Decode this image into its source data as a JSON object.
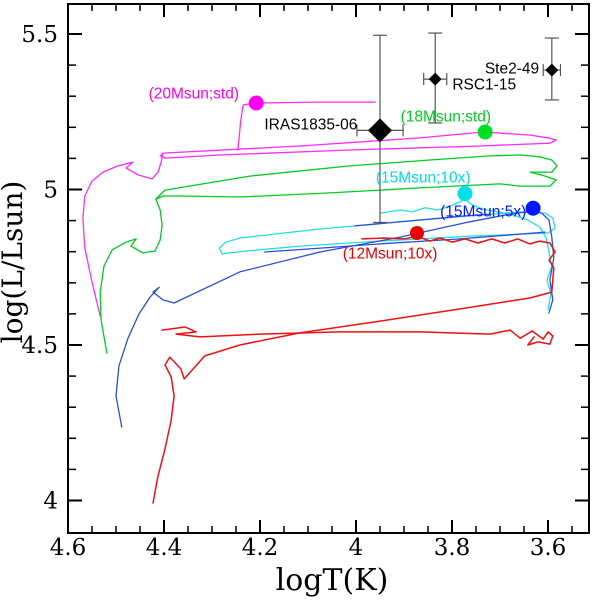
{
  "chart_data": {
    "type": "line",
    "title": "",
    "xlabel": "logT(K)",
    "ylabel": "log(L/Lsun)",
    "xlim": [
      4.6,
      3.515
    ],
    "x_reversed": true,
    "ylim": [
      3.897,
      5.597
    ],
    "grid": false,
    "x_ticks": {
      "values": [
        4.6,
        4.4,
        4.2,
        4.0,
        3.8,
        3.6
      ],
      "labels": [
        "4.6",
        "4.4",
        "4.2",
        "4",
        "3.8",
        "3.6"
      ],
      "minor_step": 0.05
    },
    "y_ticks": {
      "values": [
        5.5,
        5.0,
        4.5,
        4.0
      ],
      "labels": [
        "5.5",
        "5",
        "4.5",
        "4"
      ],
      "minor_step": 0.1
    },
    "tracks": [
      {
        "name": "20Msun-std",
        "color": "#ff2bff",
        "width": 1.3,
        "paths": [
          [
            [
              4.533,
              4.593
            ],
            [
              4.55,
              4.703
            ],
            [
              4.565,
              4.812
            ],
            [
              4.569,
              4.908
            ],
            [
              4.565,
              4.979
            ],
            [
              4.55,
              5.027
            ],
            [
              4.527,
              5.056
            ],
            [
              4.496,
              5.076
            ],
            [
              4.465,
              5.088
            ],
            [
              4.479,
              5.069
            ],
            [
              4.454,
              5.047
            ],
            [
              4.425,
              5.034
            ],
            [
              4.412,
              5.056
            ],
            [
              4.406,
              5.088
            ],
            [
              4.402,
              5.117
            ],
            [
              4.117,
              5.14
            ],
            [
              3.867,
              5.166
            ],
            [
              3.735,
              5.185
            ],
            [
              3.637,
              5.175
            ],
            [
              3.596,
              5.165
            ],
            [
              3.583,
              5.159
            ],
            [
              3.596,
              5.149
            ],
            [
              3.742,
              5.14
            ],
            [
              4.012,
              5.127
            ],
            [
              4.283,
              5.111
            ],
            [
              4.398,
              5.101
            ],
            [
              4.408,
              5.108
            ],
            [
              4.402,
              5.117
            ]
          ],
          [
            [
              4.246,
              5.127
            ],
            [
              4.24,
              5.223
            ],
            [
              4.235,
              5.272
            ],
            [
              4.208,
              5.278
            ],
            [
              4.075,
              5.281
            ],
            [
              3.96,
              5.281
            ]
          ]
        ]
      },
      {
        "name": "18Msun-std",
        "color": "#00cc22",
        "width": 1.3,
        "paths": [
          [
            [
              4.519,
              4.474
            ],
            [
              4.531,
              4.58
            ],
            [
              4.533,
              4.67
            ],
            [
              4.525,
              4.754
            ],
            [
              4.508,
              4.806
            ],
            [
              4.479,
              4.831
            ],
            [
              4.458,
              4.841
            ],
            [
              4.469,
              4.818
            ],
            [
              4.444,
              4.796
            ],
            [
              4.419,
              4.802
            ],
            [
              4.408,
              4.838
            ],
            [
              4.404,
              4.886
            ],
            [
              4.408,
              4.934
            ],
            [
              4.417,
              4.969
            ],
            [
              4.398,
              4.998
            ],
            [
              4.221,
              5.043
            ],
            [
              4.013,
              5.076
            ],
            [
              3.846,
              5.095
            ],
            [
              3.721,
              5.108
            ],
            [
              3.658,
              5.111
            ],
            [
              3.617,
              5.105
            ],
            [
              3.592,
              5.095
            ],
            [
              3.581,
              5.076
            ],
            [
              3.592,
              5.056
            ],
            [
              3.637,
              5.056
            ],
            [
              3.606,
              5.043
            ],
            [
              3.583,
              5.031
            ],
            [
              3.596,
              5.011
            ],
            [
              3.658,
              5.011
            ],
            [
              3.7,
              5.018
            ],
            [
              3.867,
              5.005
            ],
            [
              4.054,
              4.989
            ],
            [
              4.242,
              4.976
            ],
            [
              4.367,
              4.979
            ],
            [
              4.402,
              4.979
            ],
            [
              4.417,
              4.969
            ]
          ]
        ]
      },
      {
        "name": "15Msun-10x",
        "color": "#27dede",
        "width": 1.3,
        "paths": [
          [
            [
              4.279,
              4.793
            ],
            [
              4.285,
              4.812
            ],
            [
              4.271,
              4.831
            ],
            [
              4.242,
              4.844
            ],
            [
              4.075,
              4.873
            ],
            [
              3.908,
              4.896
            ],
            [
              3.763,
              4.915
            ],
            [
              3.658,
              4.928
            ],
            [
              3.606,
              4.924
            ],
            [
              3.59,
              4.908
            ],
            [
              3.585,
              4.876
            ],
            [
              3.6,
              4.86
            ],
            [
              3.763,
              4.85
            ],
            [
              3.95,
              4.834
            ],
            [
              4.117,
              4.818
            ],
            [
              4.231,
              4.802
            ],
            [
              4.279,
              4.793
            ]
          ],
          [
            [
              3.95,
              4.924
            ],
            [
              3.908,
              4.934
            ],
            [
              3.883,
              4.928
            ],
            [
              3.856,
              4.941
            ],
            [
              3.829,
              4.934
            ],
            [
              3.804,
              4.947
            ],
            [
              3.783,
              4.96
            ],
            [
              3.773,
              4.97
            ],
            [
              3.758,
              4.95
            ],
            [
              3.735,
              4.937
            ],
            [
              3.704,
              4.928
            ],
            [
              3.673,
              4.918
            ],
            [
              3.642,
              4.902
            ],
            [
              3.617,
              4.879
            ],
            [
              3.604,
              4.844
            ],
            [
              3.598,
              4.799
            ],
            [
              3.592,
              4.754
            ],
            [
              3.602,
              4.709
            ],
            [
              3.594,
              4.664
            ],
            [
              3.6,
              4.613
            ]
          ]
        ]
      },
      {
        "name": "15Msun-5x",
        "color": "#2a4fd6",
        "width": 1.3,
        "paths": [
          [
            [
              4.488,
              4.236
            ],
            [
              4.5,
              4.336
            ],
            [
              4.494,
              4.432
            ],
            [
              4.475,
              4.522
            ],
            [
              4.452,
              4.6
            ],
            [
              4.429,
              4.654
            ],
            [
              4.41,
              4.686
            ],
            [
              4.423,
              4.67
            ],
            [
              4.402,
              4.645
            ],
            [
              4.379,
              4.635
            ],
            [
              4.242,
              4.735
            ],
            [
              4.075,
              4.799
            ],
            [
              3.908,
              4.847
            ],
            [
              3.763,
              4.896
            ],
            [
              3.679,
              4.921
            ],
            [
              3.631,
              4.931
            ],
            [
              3.613,
              4.924
            ],
            [
              3.598,
              4.902
            ],
            [
              3.592,
              4.847
            ],
            [
              3.588,
              4.78
            ],
            [
              3.596,
              4.709
            ],
            [
              3.59,
              4.645
            ],
            [
              3.598,
              4.603
            ]
          ],
          [
            [
              3.606,
              4.863
            ],
            [
              3.783,
              4.841
            ],
            [
              3.95,
              4.825
            ],
            [
              4.096,
              4.809
            ],
            [
              4.19,
              4.799
            ]
          ],
          [
            [
              4.002,
              4.883
            ],
            [
              3.867,
              4.902
            ],
            [
              3.773,
              4.915
            ],
            [
              3.721,
              4.921
            ]
          ]
        ]
      },
      {
        "name": "12Msun-10x",
        "color": "#ee1111",
        "width": 1.5,
        "paths": [
          [
            [
              4.423,
              3.992
            ],
            [
              4.413,
              4.076
            ],
            [
              4.398,
              4.166
            ],
            [
              4.385,
              4.259
            ],
            [
              4.379,
              4.336
            ],
            [
              4.385,
              4.397
            ],
            [
              4.398,
              4.436
            ],
            [
              4.388,
              4.461
            ],
            [
              4.365,
              4.423
            ],
            [
              4.358,
              4.391
            ],
            [
              4.315,
              4.465
            ],
            [
              4.242,
              4.5
            ],
            [
              4.117,
              4.539
            ],
            [
              3.95,
              4.577
            ],
            [
              3.783,
              4.616
            ],
            [
              3.638,
              4.651
            ],
            [
              3.592,
              4.67
            ],
            [
              3.588,
              4.748
            ],
            [
              3.598,
              4.773
            ],
            [
              3.585,
              4.799
            ],
            [
              3.596,
              4.828
            ],
            [
              3.617,
              4.834
            ],
            [
              3.638,
              4.825
            ],
            [
              3.663,
              4.841
            ],
            [
              3.69,
              4.828
            ],
            [
              3.717,
              4.841
            ],
            [
              3.746,
              4.828
            ],
            [
              3.773,
              4.841
            ],
            [
              3.8,
              4.831
            ],
            [
              3.825,
              4.844
            ],
            [
              3.846,
              4.834
            ],
            [
              3.873,
              4.85
            ],
            [
              3.898,
              4.841
            ],
            [
              3.94,
              4.844
            ],
            [
              3.988,
              4.841
            ]
          ],
          [
            [
              4.404,
              4.548
            ],
            [
              4.356,
              4.558
            ],
            [
              4.333,
              4.542
            ],
            [
              4.375,
              4.535
            ],
            [
              4.325,
              4.526
            ],
            [
              4.2,
              4.535
            ],
            [
              4.033,
              4.542
            ],
            [
              3.867,
              4.542
            ],
            [
              3.721,
              4.535
            ],
            [
              3.679,
              4.548
            ],
            [
              3.658,
              4.522
            ],
            [
              3.633,
              4.545
            ],
            [
              3.61,
              4.519
            ],
            [
              3.6,
              4.542
            ],
            [
              3.59,
              4.529
            ],
            [
              3.596,
              4.503
            ],
            [
              3.621,
              4.51
            ],
            [
              3.642,
              4.5
            ],
            [
              3.629,
              4.526
            ]
          ]
        ]
      }
    ],
    "track_markers": [
      {
        "name": "20Msun-std-point",
        "color": "#ff00f0",
        "logT": 4.208,
        "logL": 5.278,
        "r": 7.5
      },
      {
        "name": "18Msun-std-point",
        "color": "#00dd22",
        "logT": 3.731,
        "logL": 5.185,
        "r": 7.5
      },
      {
        "name": "15Msun-10x-point",
        "color": "#00e0e8",
        "logT": 3.773,
        "logL": 4.987,
        "r": 7.5
      },
      {
        "name": "15Msun-5x-point",
        "color": "#0418ff",
        "logT": 3.631,
        "logL": 4.94,
        "r": 7.5
      },
      {
        "name": "12Msun-10x-point",
        "color": "#ee0000",
        "logT": 3.873,
        "logL": 4.86,
        "r": 7.0
      }
    ],
    "observations": [
      {
        "name": "IRAS1835-06",
        "logT": 3.95,
        "logL": 5.19,
        "xerr": 0.048,
        "yerr_plus": 0.306,
        "yerr_minus": 0.296,
        "size": 12
      },
      {
        "name": "RSC1-15",
        "logT": 3.835,
        "logL": 5.355,
        "xerr": 0.024,
        "yerr_plus": 0.148,
        "yerr_minus": 0.141,
        "size": 6.5
      },
      {
        "name": "Ste2-49",
        "logT": 3.592,
        "logL": 5.384,
        "xerr": 0.018,
        "yerr_plus": 0.103,
        "yerr_minus": 0.096,
        "size": 6.5
      }
    ],
    "annotations": [
      {
        "text": "(20Msun;std)",
        "color": "#ff00f0",
        "logT": 4.338,
        "logL": 5.31
      },
      {
        "text": "IRAS1835-06",
        "color": "#000000",
        "logT": 4.094,
        "logL": 5.211
      },
      {
        "text": "RSC1-15",
        "color": "#000000",
        "logT": 3.733,
        "logL": 5.339
      },
      {
        "text": "Ste2-49",
        "color": "#000000",
        "logT": 3.675,
        "logL": 5.391
      },
      {
        "text": "(18Msun;std)",
        "color": "#00cc22",
        "logT": 3.813,
        "logL": 5.236
      },
      {
        "text": "(15Msun;10x)",
        "color": "#00dede",
        "logT": 3.86,
        "logL": 5.04
      },
      {
        "text": "(15Msun;5x)",
        "color": "#0418ff",
        "logT": 3.735,
        "logL": 4.931
      },
      {
        "text": "(12Msun;10x)",
        "color": "#ee0000",
        "logT": 3.929,
        "logL": 4.796
      }
    ],
    "errorbar_color": "#555555",
    "frame_color": "#000000"
  }
}
